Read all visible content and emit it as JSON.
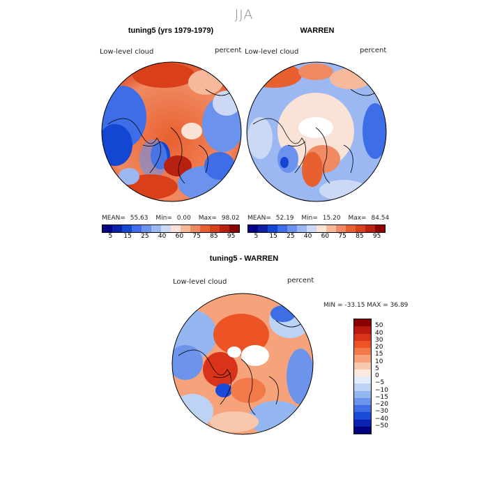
{
  "page_title": "JJA",
  "panels": [
    {
      "title": "tuning5 (yrs 1979-1979)",
      "variable": "Low-level cloud",
      "units": "percent",
      "stats": {
        "mean_label": "MEAN=",
        "mean": "55.63",
        "min_label": "Min=",
        "min": "0.00",
        "max_label": "Max=",
        "max": "98.02"
      }
    },
    {
      "title": "WARREN",
      "variable": "Low-level cloud",
      "units": "percent",
      "stats": {
        "mean_label": "MEAN=",
        "mean": "52.19",
        "min_label": "Min=",
        "min": "15.20",
        "max_label": "Max=",
        "max": "84.54"
      }
    }
  ],
  "abs_colorbar": {
    "colors": [
      "#000080",
      "#0a1fa6",
      "#1446d4",
      "#3d6ee8",
      "#6b93ee",
      "#9cb8f2",
      "#cbd9f5",
      "#fbe2d6",
      "#f6b99c",
      "#f08a62",
      "#e8602f",
      "#d9401a",
      "#b82010",
      "#8b0000"
    ],
    "ticks": [
      "5",
      "15",
      "25",
      "40",
      "60",
      "75",
      "85",
      "95"
    ]
  },
  "diff_panel": {
    "title": "tuning5 - WARREN",
    "variable": "Low-level cloud",
    "units": "percent",
    "minmax": "MIN = -33.15 MAX =  36.89"
  },
  "diff_colorbar": {
    "colors": [
      "#8b0000",
      "#b81a0f",
      "#d9331a",
      "#ec5426",
      "#f27a4a",
      "#f6a37c",
      "#f9c7ab",
      "#fce9dd",
      "#e2ecfb",
      "#bcd3f6",
      "#93b5f0",
      "#6b94ea",
      "#3d6ee3",
      "#1a4bd8",
      "#0a24b0",
      "#000080"
    ],
    "ticks": [
      "50",
      "40",
      "30",
      "20",
      "15",
      "10",
      "5",
      "0",
      "−5",
      "−10",
      "−15",
      "−20",
      "−30",
      "−40",
      "−50"
    ]
  }
}
